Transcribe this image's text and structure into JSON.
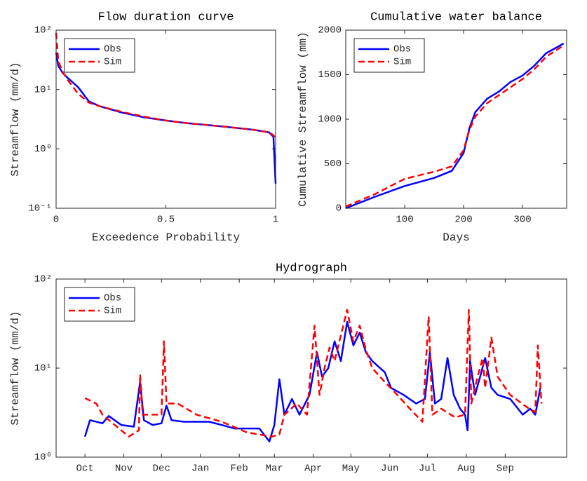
{
  "chart_data": [
    {
      "type": "line",
      "title": "Flow duration curve",
      "x_label": "Exceedence Probability",
      "y_label": "Streamflow (mm/d)",
      "x": [
        0,
        0.01,
        0.03,
        0.05,
        0.1,
        0.15,
        0.2,
        0.3,
        0.4,
        0.5,
        0.6,
        0.7,
        0.8,
        0.9,
        0.97,
        0.99,
        1
      ],
      "series": [
        {
          "name": "Obs",
          "color": "#0000ff",
          "style": "solid",
          "values": [
            42,
            25,
            19,
            16,
            11,
            6.3,
            5.2,
            4.1,
            3.4,
            3.0,
            2.7,
            2.5,
            2.3,
            2.1,
            1.9,
            1.6,
            0.26
          ]
        },
        {
          "name": "Sim",
          "color": "#ff0000",
          "style": "dashed",
          "values": [
            90,
            30,
            20,
            15,
            8.5,
            6,
            5.2,
            4.2,
            3.5,
            3.0,
            2.7,
            2.5,
            2.3,
            2.1,
            1.9,
            1.7,
            1.5
          ]
        }
      ],
      "xlim": [
        0,
        1
      ],
      "xticks": [
        0,
        0.5,
        1
      ],
      "ylim": [
        0.1,
        100
      ],
      "ylog": true,
      "yticks": [
        {
          "value": 0.1,
          "label": "10⁻¹"
        },
        {
          "value": 1,
          "label": "10⁰"
        },
        {
          "value": 10,
          "label": "10¹"
        },
        {
          "value": 100,
          "label": "10²"
        }
      ],
      "legend": "northwest",
      "grid": false
    },
    {
      "type": "line",
      "title": "Cumulative water balance",
      "x_label": "Days",
      "y_label": "Cumulative Streamflow (mm)",
      "x": [
        0,
        50,
        100,
        150,
        180,
        200,
        210,
        220,
        240,
        260,
        280,
        300,
        320,
        340,
        370
      ],
      "series": [
        {
          "name": "Obs",
          "color": "#0000ff",
          "style": "solid",
          "values": [
            0,
            130,
            250,
            340,
            420,
            620,
            900,
            1080,
            1230,
            1310,
            1420,
            1490,
            1600,
            1740,
            1850
          ]
        },
        {
          "name": "Sim",
          "color": "#ff0000",
          "style": "dashed",
          "values": [
            20,
            160,
            330,
            410,
            470,
            650,
            880,
            1030,
            1180,
            1270,
            1360,
            1450,
            1560,
            1700,
            1830
          ]
        }
      ],
      "xlim": [
        0,
        375
      ],
      "xticks": [
        100,
        200,
        300
      ],
      "ylim": [
        0,
        2000
      ],
      "yticks": [
        0,
        500,
        1000,
        1500,
        2000
      ],
      "legend": "northwest",
      "grid": false
    },
    {
      "type": "line",
      "title": "Hydrograph",
      "y_label": "Streamflow (mm/d)",
      "series": [
        {
          "name": "Obs",
          "color": "#0000ff",
          "style": "solid",
          "x": [
            1,
            5,
            15,
            20,
            30,
            40,
            45,
            48,
            55,
            62,
            66,
            70,
            80,
            90,
            100,
            110,
            120,
            130,
            140,
            148,
            152,
            156,
            160,
            166,
            172,
            180,
            186,
            190,
            195,
            200,
            205,
            210,
            215,
            220,
            225,
            230,
            240,
            245,
            255,
            265,
            272,
            276,
            280,
            285,
            290,
            295,
            300,
            304,
            306,
            308,
            312,
            316,
            320,
            325,
            330,
            340,
            350,
            356,
            360,
            364
          ],
          "values": [
            1.7,
            2.6,
            2.4,
            2.9,
            2.3,
            2.2,
            7,
            2.6,
            2.3,
            2.4,
            3.8,
            2.6,
            2.5,
            2.5,
            2.5,
            2.3,
            2.1,
            2.1,
            2.1,
            1.5,
            2.3,
            7.5,
            3,
            4.5,
            3,
            5,
            15,
            8,
            10,
            20,
            12,
            33,
            18,
            25,
            15,
            12,
            9,
            6,
            5,
            4,
            4.5,
            15,
            4,
            4.5,
            13,
            5,
            3.5,
            3,
            2,
            12,
            5,
            8,
            13,
            6,
            5,
            4.5,
            3,
            3.5,
            3,
            6
          ]
        },
        {
          "name": "Sim",
          "color": "#ff0000",
          "style": "dashed",
          "x": [
            1,
            10,
            15,
            30,
            36,
            44,
            45,
            47,
            55,
            62,
            64,
            66,
            75,
            90,
            110,
            130,
            150,
            156,
            160,
            170,
            178,
            184,
            188,
            192,
            196,
            200,
            210,
            215,
            220,
            225,
            230,
            240,
            250,
            260,
            270,
            275,
            278,
            285,
            296,
            304,
            307,
            309,
            314,
            318,
            320,
            325,
            330,
            340,
            355,
            360,
            362,
            365
          ],
          "values": [
            4.6,
            4,
            3,
            2,
            1.7,
            2,
            8.5,
            3,
            3,
            3,
            20,
            4,
            4,
            3,
            2.5,
            1.9,
            1.7,
            1.8,
            3,
            4,
            3,
            30,
            5,
            10,
            17,
            12,
            45,
            20,
            30,
            16,
            10,
            7,
            5,
            3.5,
            2.5,
            38,
            3,
            3.5,
            2.8,
            3,
            45,
            4,
            8,
            13,
            6,
            22,
            8,
            5,
            3.5,
            3.2,
            18,
            4
          ]
        }
      ],
      "xlim": [
        -22,
        385
      ],
      "xticks": [
        {
          "value": 1,
          "label": "Oct"
        },
        {
          "value": 32,
          "label": "Nov"
        },
        {
          "value": 62,
          "label": "Dec"
        },
        {
          "value": 93,
          "label": "Jan"
        },
        {
          "value": 124,
          "label": "Feb"
        },
        {
          "value": 152,
          "label": "Mar"
        },
        {
          "value": 183,
          "label": "Apr"
        },
        {
          "value": 213,
          "label": "May"
        },
        {
          "value": 244,
          "label": "Jun"
        },
        {
          "value": 274,
          "label": "Jul"
        },
        {
          "value": 305,
          "label": "Aug"
        },
        {
          "value": 336,
          "label": "Sep"
        }
      ],
      "ylim": [
        1,
        100
      ],
      "ylog": true,
      "yticks": [
        {
          "value": 1,
          "label": "10⁰"
        },
        {
          "value": 10,
          "label": "10¹"
        },
        {
          "value": 100,
          "label": "10²"
        }
      ],
      "legend": "northwest",
      "grid": false
    }
  ]
}
